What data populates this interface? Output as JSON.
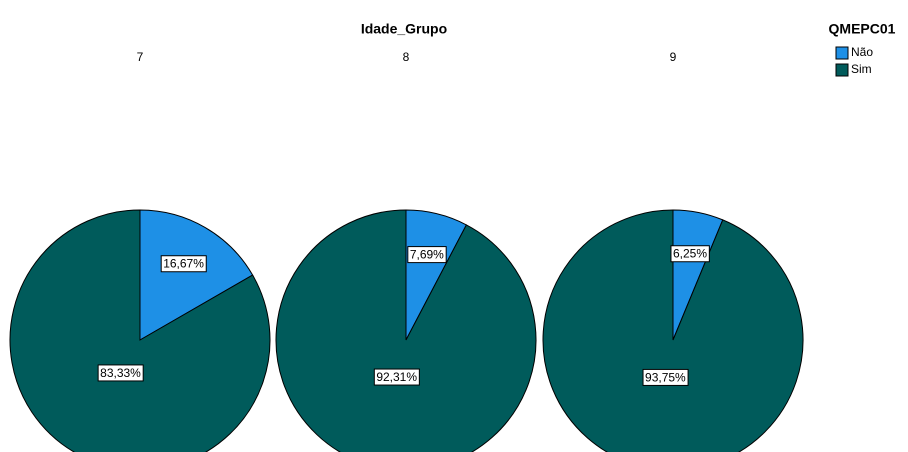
{
  "chart_data": {
    "type": "pie",
    "title": "Idade_Grupo",
    "legend_title": "QMEPC01",
    "categories": [
      "Não",
      "Sim"
    ],
    "colors": [
      "#1e90e6",
      "#005b5b"
    ],
    "series": [
      {
        "name": "7",
        "values": [
          16.67,
          83.33
        ],
        "value_labels": [
          "16,67%",
          "83,33%"
        ]
      },
      {
        "name": "8",
        "values": [
          7.69,
          92.31
        ],
        "value_labels": [
          "7,69%",
          "92,31%"
        ]
      },
      {
        "name": "9",
        "values": [
          6.25,
          93.75
        ],
        "value_labels": [
          "6,25%",
          "93,75%"
        ]
      }
    ]
  }
}
